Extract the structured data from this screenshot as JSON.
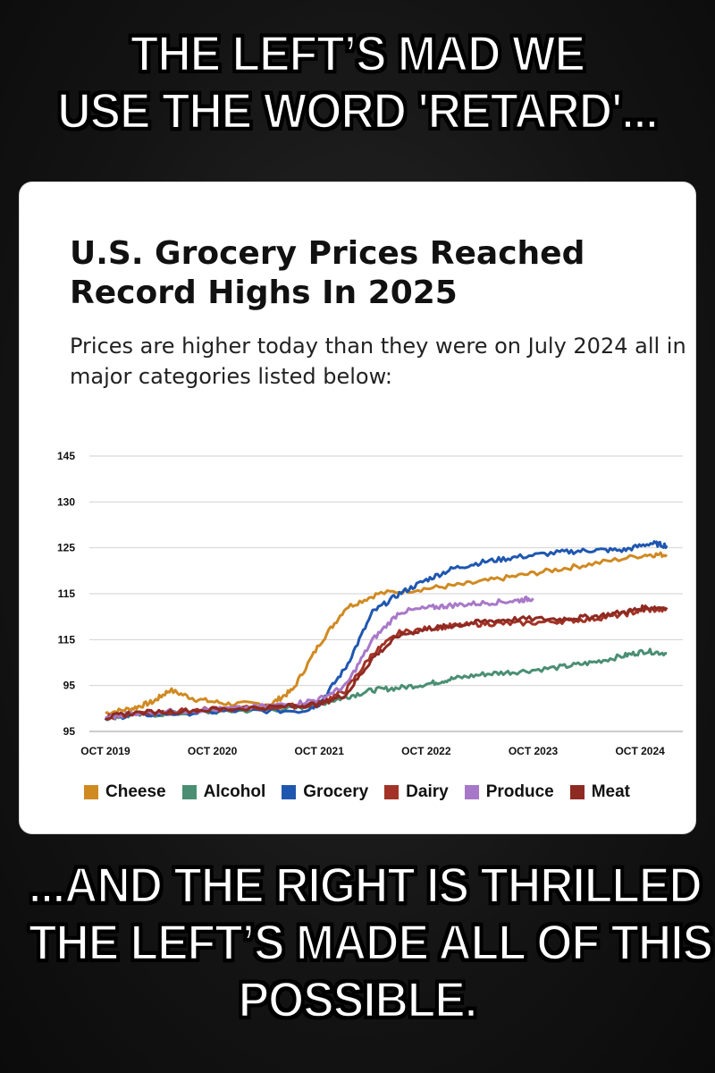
{
  "top_caption": [
    "THE LEFT’S MAD WE",
    "USE THE WORD 'RETARD'..."
  ],
  "bottom_caption": [
    "...AND THE RIGHT IS THRILLED",
    "THE LEFT’S MADE ALL OF THIS",
    "POSSIBLE."
  ],
  "chart_data": {
    "type": "line",
    "title": "U.S. Grocery Prices Reached Record Highs In 2025",
    "subtitle": "Prices are higher today than they were on July 2024 all in major categories listed below:",
    "y_tick_labels": [
      "95",
      "95",
      "115",
      "115",
      "125",
      "130",
      "145"
    ],
    "x_tick_labels": [
      "OCT 2019",
      "OCT 2020",
      "OCT 2021",
      "OCT 2022",
      "OCT 2023",
      "OCT 2024"
    ],
    "ylim": [
      90,
      150
    ],
    "grid": true,
    "legend_position": "bottom",
    "series": [
      {
        "name": "Cheese",
        "color": "#d08a22",
        "x": [
          2019.75,
          2020.0,
          2020.2,
          2020.35,
          2020.6,
          2020.9,
          2021.3,
          2021.5,
          2021.75,
          2022.0,
          2022.3,
          2022.7,
          2023.1,
          2023.5,
          2023.9,
          2024.3,
          2024.8,
          2025.0
        ],
        "y": [
          94,
          95,
          96.5,
          99,
          97,
          96,
          96,
          99,
          109,
          117,
          120,
          121,
          122,
          123.5,
          125,
          126.5,
          128.5,
          128.5
        ]
      },
      {
        "name": "Alcohol",
        "color": "#4a8f73",
        "x": [
          2019.75,
          2020.0,
          2020.5,
          2021.0,
          2021.5,
          2021.75,
          2022.0,
          2022.25,
          2022.5,
          2022.8,
          2023.0,
          2023.3,
          2023.6,
          2024.0,
          2024.3,
          2024.6,
          2024.8,
          2025.0
        ],
        "y": [
          93,
          93.5,
          94,
          94.5,
          95,
          96,
          97.5,
          99,
          99.5,
          100.5,
          101.5,
          102.5,
          103,
          104,
          105,
          106.5,
          107.5,
          107
        ]
      },
      {
        "name": "Grocery",
        "color": "#1f57b0",
        "x": [
          2019.75,
          2020.0,
          2020.5,
          2021.0,
          2021.6,
          2021.75,
          2022.0,
          2022.25,
          2022.5,
          2022.75,
          2023.0,
          2023.3,
          2023.6,
          2024.0,
          2024.3,
          2024.6,
          2024.85,
          2025.0
        ],
        "y": [
          93,
          93.5,
          94,
          94.5,
          94.5,
          96,
          104,
          116,
          120,
          123,
          125.5,
          127,
          128,
          129,
          129.5,
          129.5,
          131,
          130.5
        ]
      },
      {
        "name": "Dairy",
        "color": "#a33326",
        "x": [
          2019.75,
          2020.0,
          2020.5,
          2021.0,
          2021.5,
          2021.75,
          2022.0,
          2022.25,
          2022.5,
          2022.8,
          2023.0,
          2023.3,
          2023.6,
          2024.0,
          2024.3,
          2024.6,
          2024.8,
          2025.0
        ],
        "y": [
          93,
          94,
          94.5,
          95,
          95.5,
          96,
          99,
          107,
          111.5,
          112.5,
          113,
          113.5,
          113.5,
          114,
          114.5,
          115.5,
          116.5,
          116.5
        ]
      },
      {
        "name": "Produce",
        "color": "#a878c8",
        "x": [
          2019.75,
          2020.0,
          2020.5,
          2021.0,
          2021.5,
          2021.75,
          2022.0,
          2022.25,
          2022.5,
          2022.8,
          2023.0,
          2023.3,
          2023.6,
          2023.75
        ],
        "y": [
          93,
          94,
          94.5,
          95,
          96,
          97,
          100,
          110,
          116,
          117,
          117.5,
          118,
          118.5,
          119
        ]
      },
      {
        "name": "Meat",
        "color": "#8e2a22",
        "x": [
          2019.75,
          2020.0,
          2020.5,
          2021.0,
          2021.5,
          2021.75,
          2022.0,
          2022.25,
          2022.5,
          2022.8,
          2023.0,
          2023.3,
          2023.6,
          2024.0,
          2024.3,
          2024.6,
          2024.8,
          2025.0
        ],
        "y": [
          93,
          94,
          94.5,
          95,
          95.5,
          96,
          98,
          106,
          111,
          112.5,
          113,
          114,
          114.5,
          114.5,
          115,
          116,
          117,
          117
        ]
      }
    ]
  }
}
